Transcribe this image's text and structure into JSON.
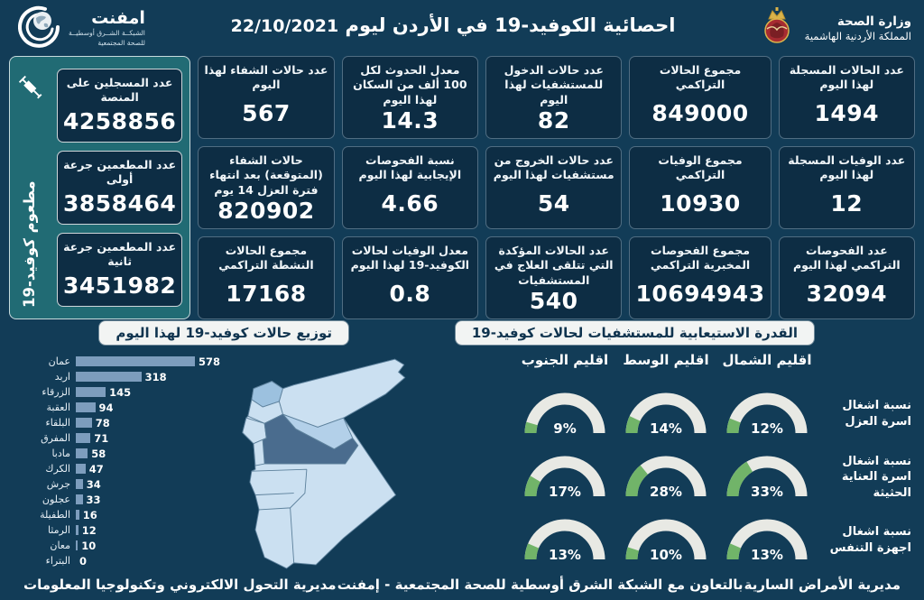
{
  "header": {
    "title": "احصائية الكوفيد-19 في الأردن ليوم",
    "date": "22/10/2021",
    "ministry": {
      "line1": "وزارة الصحة",
      "line2": "المملكة الأردنية الهاشمية"
    },
    "emphnet": {
      "name": "امفنت",
      "sub1": "الشبكــة الشــرق أوسطيــة",
      "sub2": "للصحة المجتمعية"
    }
  },
  "stats": {
    "columns": [
      {
        "cards": [
          {
            "label": "عدد الحالات المسجلة لهذا اليوم",
            "value": "1494"
          },
          {
            "label": "عدد الوفيات المسجلة لهذا اليوم",
            "value": "12"
          },
          {
            "label": "عدد الفحوصات التراكمي لهذا اليوم",
            "value": "32094"
          }
        ]
      },
      {
        "cards": [
          {
            "label": "مجموع الحالات التراكمي",
            "value": "849000"
          },
          {
            "label": "مجموع الوفيات التراكمي",
            "value": "10930"
          },
          {
            "label": "مجموع الفحوصات المخبرية التراكمي",
            "value": "10694943"
          }
        ]
      },
      {
        "cards": [
          {
            "label": "عدد حالات الدخول للمستشفيات لهذا اليوم",
            "value": "82"
          },
          {
            "label": "عدد حالات الخروج من مستشفيات لهذا اليوم",
            "value": "54"
          },
          {
            "label": "عدد الحالات المؤكدة التي تتلقى العلاج في المستشفيات",
            "value": "540"
          }
        ]
      },
      {
        "cards": [
          {
            "label": "معدل الحدوث لكل 100 ألف من السكان لهذا اليوم",
            "value": "14.3"
          },
          {
            "label": "نسبة الفحوصات الإيجابية لهذا اليوم",
            "value": "4.66"
          },
          {
            "label": "معدل الوفيات لحالات الكوفيد-19 لهذا اليوم",
            "value": "0.8"
          }
        ]
      },
      {
        "cards": [
          {
            "label": "عدد حالات الشفاء لهذا اليوم",
            "value": "567"
          },
          {
            "label": "حالات الشفاء (المتوقعة) بعد انتهاء فترة العزل 14 يوم",
            "value": "820902"
          },
          {
            "label": "مجموع الحالات النشطة التراكمي",
            "value": "17168"
          }
        ]
      }
    ]
  },
  "vaccine": {
    "vertical_label": "مطعوم كوفيد-19",
    "cards": [
      {
        "label": "عدد المسجلين على المنصة",
        "value": "4258856"
      },
      {
        "label": "عدد المطعمين جرعة أولى",
        "value": "3858464"
      },
      {
        "label": "عدد المطعمين جرعة ثانية",
        "value": "3451982"
      }
    ]
  },
  "chart_data": [
    {
      "type": "bar",
      "orientation": "horizontal",
      "title": "توزيع حالات كوفيد-19 لهذا اليوم",
      "categories": [
        "عمان",
        "اربد",
        "الزرقاء",
        "العقبة",
        "البلقاء",
        "المفرق",
        "مادبا",
        "الكرك",
        "جرش",
        "عجلون",
        "الطفيلة",
        "الرمثا",
        "معان",
        "البتراء"
      ],
      "values": [
        578,
        318,
        145,
        94,
        78,
        71,
        58,
        47,
        34,
        33,
        16,
        12,
        10,
        0
      ],
      "xlim": [
        0,
        600
      ],
      "bar_color": "#7D9DBD"
    },
    {
      "type": "gauge-grid",
      "title": "القدرة الاستيعابية للمستشفيات لحالات كوفيد-19",
      "columns": [
        "اقليم الشمال",
        "اقليم الوسط",
        "اقليم الجنوب"
      ],
      "rows": [
        {
          "label": "نسبة اشغال اسرة العزل",
          "values": [
            12,
            14,
            9
          ]
        },
        {
          "label": "نسبة اشغال اسرة العناية الحثيثة",
          "values": [
            33,
            28,
            17
          ]
        },
        {
          "label": "نسبة اشغال اجهزة التنفس",
          "values": [
            13,
            10,
            13
          ]
        }
      ],
      "unit": "%",
      "range": [
        0,
        100
      ],
      "track_color": "#E8E9E4",
      "fill_color": "#71B469"
    }
  ],
  "footer": {
    "right": "مديرية الأمراض السارية",
    "center": "بالتعاون مع الشبكة الشرق أوسطية للصحة المجتمعية - إمفنت",
    "left": "مديرية التحول الالكتروني وتكنولوجيا المعلومات"
  },
  "colors": {
    "background": "#123C57",
    "card_bg": "#0D2D44",
    "teal_panel": "#216B74",
    "pill_bg": "#F2F4F3",
    "bar": "#7D9DBD",
    "gauge_track": "#E8E9E4",
    "gauge_green": "#71B469",
    "map_light": "#CBE0F1",
    "map_medium": "#9CC1DF",
    "map_dark": "#4A6C8E"
  }
}
